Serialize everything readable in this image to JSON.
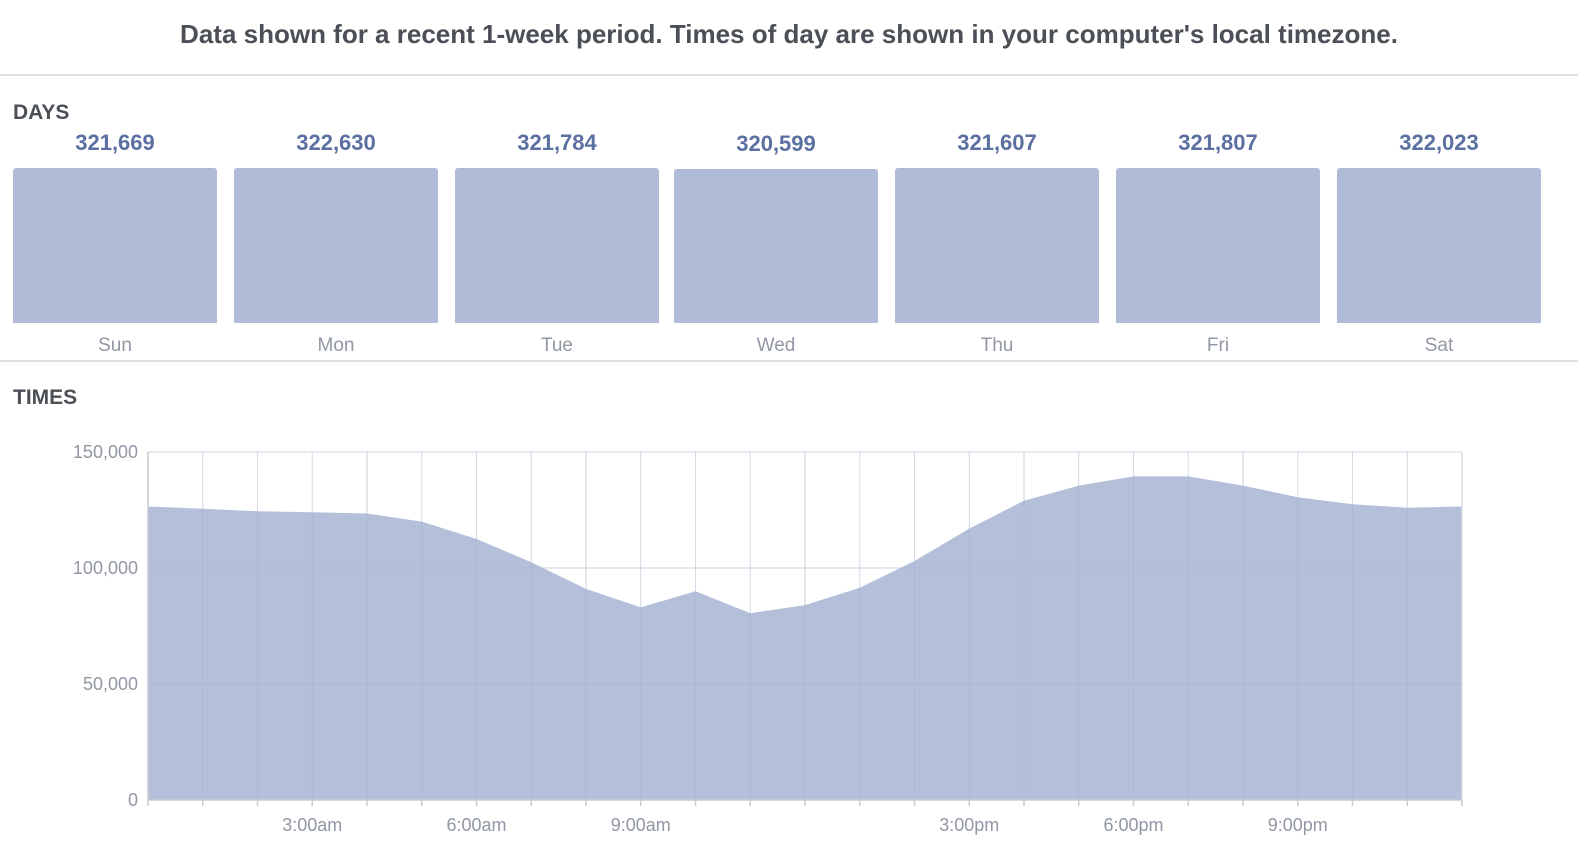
{
  "header": {
    "notice": "Data shown for a recent 1-week period. Times of day are shown in your computer's local timezone."
  },
  "colors": {
    "fill": "#b0bcd7",
    "value_text": "#5b6fa1",
    "label_text": "#9197a3",
    "grid": "#e9ebee"
  },
  "chart_data": [
    {
      "type": "bar",
      "title": "DAYS",
      "categories": [
        "Sun",
        "Mon",
        "Tue",
        "Wed",
        "Thu",
        "Fri",
        "Sat"
      ],
      "values": [
        321669,
        322630,
        321784,
        320599,
        321607,
        321807,
        322023
      ],
      "value_labels": [
        "321,669",
        "322,630",
        "321,784",
        "320,599",
        "321,607",
        "321,807",
        "322,023"
      ],
      "grid": false
    },
    {
      "type": "area",
      "title": "TIMES",
      "x": [
        "12:00am",
        "1:00am",
        "2:00am",
        "3:00am",
        "4:00am",
        "5:00am",
        "6:00am",
        "7:00am",
        "8:00am",
        "9:00am",
        "10:00am",
        "11:00am",
        "12:00pm",
        "1:00pm",
        "2:00pm",
        "3:00pm",
        "4:00pm",
        "5:00pm",
        "6:00pm",
        "7:00pm",
        "8:00pm",
        "9:00pm",
        "10:00pm",
        "11:00pm",
        "12:00am"
      ],
      "values": [
        126500,
        125500,
        124500,
        124000,
        123500,
        120000,
        112500,
        102500,
        91000,
        83000,
        90000,
        80500,
        84000,
        91500,
        103000,
        117000,
        129000,
        135500,
        139500,
        139500,
        135500,
        130500,
        127500,
        126000,
        126500
      ],
      "x_tick_labels": [
        {
          "hour": 3,
          "label": "3:00am"
        },
        {
          "hour": 6,
          "label": "6:00am"
        },
        {
          "hour": 9,
          "label": "9:00am"
        },
        {
          "hour": 15,
          "label": "3:00pm"
        },
        {
          "hour": 18,
          "label": "6:00pm"
        },
        {
          "hour": 21,
          "label": "9:00pm"
        }
      ],
      "y_ticks": [
        {
          "value": 0,
          "label": "0"
        },
        {
          "value": 50000,
          "label": "50,000"
        },
        {
          "value": 100000,
          "label": "100,000"
        },
        {
          "value": 150000,
          "label": "150,000"
        }
      ],
      "ylim": [
        0,
        150000
      ],
      "grid": true
    }
  ]
}
